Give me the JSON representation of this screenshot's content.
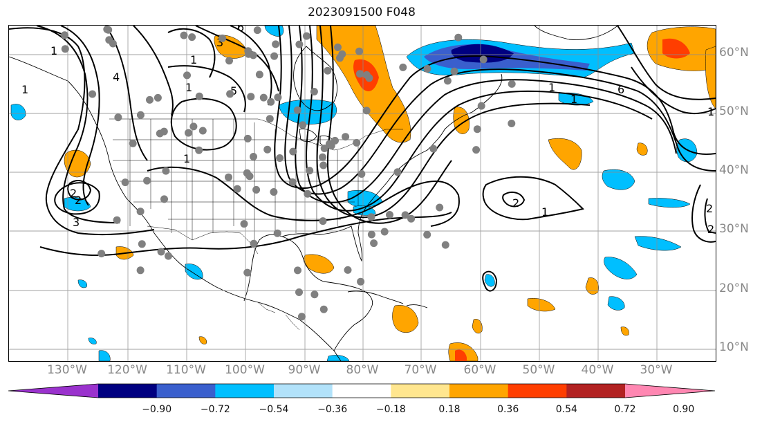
{
  "title": "2023091500 F048",
  "lat_labels": [
    "60°N",
    "50°N",
    "40°N",
    "30°N",
    "20°N",
    "10°N"
  ],
  "lon_labels": [
    "130°W",
    "120°W",
    "110°W",
    "100°W",
    "90°W",
    "80°W",
    "70°W",
    "60°W",
    "50°W",
    "40°W",
    "30°W"
  ],
  "colorbar": {
    "colors": [
      "#9a32cd",
      "#000080",
      "#3a5fcd",
      "#00bfff",
      "#b2e2fa",
      "#ffffff",
      "#ffe68f",
      "#ffa500",
      "#ff3e00",
      "#b22222",
      "#ff87b2"
    ],
    "tick_labels": [
      "−0.90",
      "−0.72",
      "−0.54",
      "−0.36",
      "−0.18",
      "0.18",
      "0.36",
      "0.54",
      "0.72",
      "0.90"
    ]
  },
  "contour_labels": [
    "1",
    "2",
    "3",
    "4",
    "5",
    "6",
    "1",
    "2",
    "1",
    "3",
    "1",
    "1",
    "2",
    "1",
    "6",
    "1",
    "2",
    "2",
    "1",
    "1"
  ],
  "station_count": 120
}
